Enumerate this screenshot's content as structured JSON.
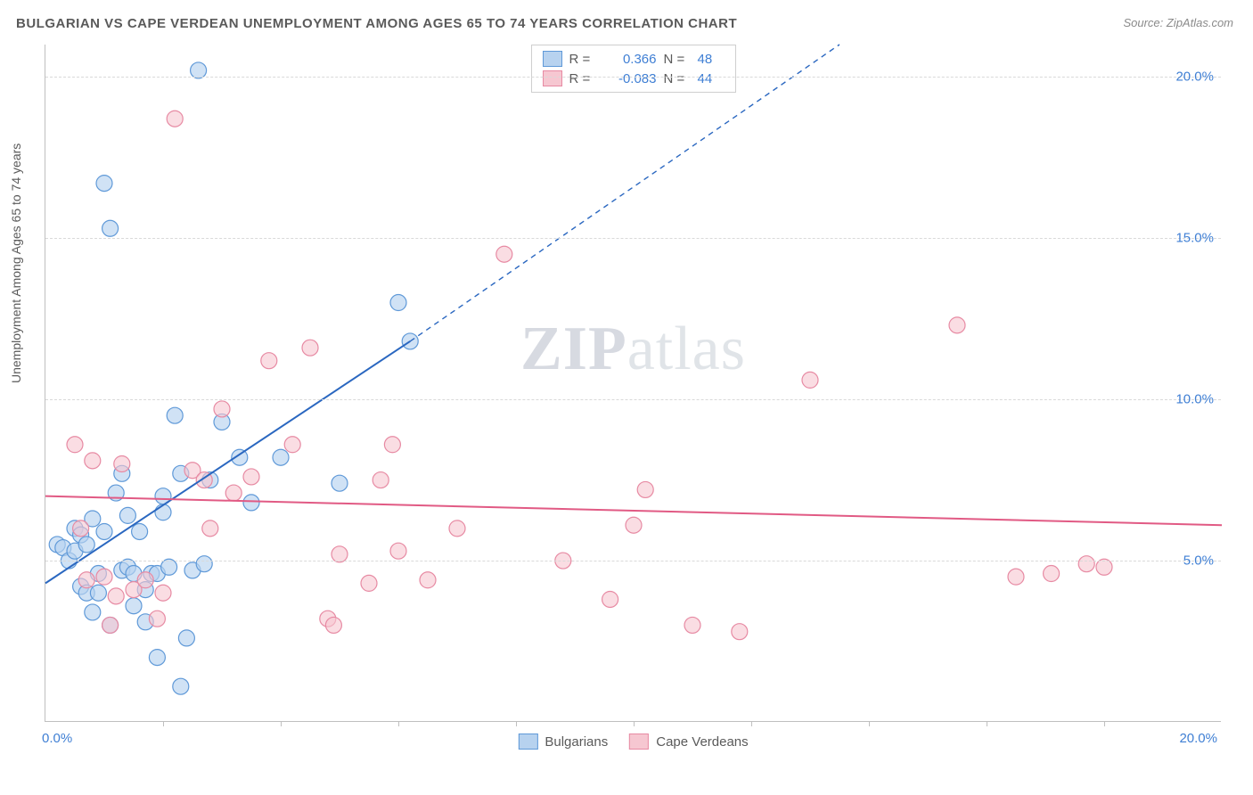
{
  "title": "BULGARIAN VS CAPE VERDEAN UNEMPLOYMENT AMONG AGES 65 TO 74 YEARS CORRELATION CHART",
  "source": "Source: ZipAtlas.com",
  "y_axis_label": "Unemployment Among Ages 65 to 74 years",
  "watermark_a": "ZIP",
  "watermark_b": "atlas",
  "chart": {
    "type": "scatter",
    "xlim": [
      0,
      20
    ],
    "ylim": [
      0,
      21
    ],
    "x_tick_labels": [
      {
        "v": 0,
        "label": "0.0%"
      },
      {
        "v": 20,
        "label": "20.0%"
      }
    ],
    "x_tick_minor": [
      2,
      4,
      6,
      8,
      10,
      12,
      14,
      16,
      18
    ],
    "y_ticks": [
      {
        "v": 5,
        "label": "5.0%"
      },
      {
        "v": 10,
        "label": "10.0%"
      },
      {
        "v": 15,
        "label": "15.0%"
      },
      {
        "v": 20,
        "label": "20.0%"
      }
    ],
    "marker_radius": 9,
    "marker_stroke_width": 1.2,
    "line_width": 2,
    "dash_pattern": "6,5",
    "grid_color": "#d9d9d9",
    "background_color": "#ffffff",
    "series": [
      {
        "name": "Bulgarians",
        "fill": "#b7d2ef",
        "stroke": "#5f99d8",
        "fill_opacity": 0.65,
        "line_color": "#2a67c0",
        "r_value": "0.366",
        "n_value": "48",
        "regression": {
          "x1": 0,
          "y1": 4.3,
          "x2": 6.2,
          "y2": 11.8,
          "dash_to_x": 13.5,
          "dash_to_y": 21
        },
        "points": [
          [
            0.2,
            5.5
          ],
          [
            0.3,
            5.4
          ],
          [
            0.4,
            5.0
          ],
          [
            0.5,
            5.3
          ],
          [
            0.5,
            6.0
          ],
          [
            0.6,
            5.8
          ],
          [
            0.6,
            4.2
          ],
          [
            0.7,
            5.5
          ],
          [
            0.7,
            4.0
          ],
          [
            0.8,
            6.3
          ],
          [
            0.8,
            3.4
          ],
          [
            0.9,
            4.6
          ],
          [
            0.9,
            4.0
          ],
          [
            1.0,
            5.9
          ],
          [
            1.0,
            16.7
          ],
          [
            1.1,
            15.3
          ],
          [
            1.1,
            3.0
          ],
          [
            1.2,
            7.1
          ],
          [
            1.3,
            7.7
          ],
          [
            1.3,
            4.7
          ],
          [
            1.4,
            6.4
          ],
          [
            1.4,
            4.8
          ],
          [
            1.5,
            3.6
          ],
          [
            1.5,
            4.6
          ],
          [
            1.6,
            5.9
          ],
          [
            1.7,
            4.1
          ],
          [
            1.7,
            3.1
          ],
          [
            1.8,
            4.6
          ],
          [
            1.9,
            4.6
          ],
          [
            1.9,
            2.0
          ],
          [
            2.0,
            6.5
          ],
          [
            2.0,
            7.0
          ],
          [
            2.1,
            4.8
          ],
          [
            2.2,
            9.5
          ],
          [
            2.3,
            7.7
          ],
          [
            2.3,
            1.1
          ],
          [
            2.4,
            2.6
          ],
          [
            2.5,
            4.7
          ],
          [
            2.6,
            20.2
          ],
          [
            2.7,
            4.9
          ],
          [
            2.8,
            7.5
          ],
          [
            3.0,
            9.3
          ],
          [
            3.3,
            8.2
          ],
          [
            3.5,
            6.8
          ],
          [
            4.0,
            8.2
          ],
          [
            5.0,
            7.4
          ],
          [
            6.0,
            13.0
          ],
          [
            6.2,
            11.8
          ]
        ]
      },
      {
        "name": "Cape Verdeans",
        "fill": "#f6c7d1",
        "stroke": "#e78aa3",
        "fill_opacity": 0.6,
        "line_color": "#e15a84",
        "r_value": "-0.083",
        "n_value": "44",
        "regression": {
          "x1": 0,
          "y1": 7.0,
          "x2": 20,
          "y2": 6.1
        },
        "points": [
          [
            0.5,
            8.6
          ],
          [
            0.7,
            4.4
          ],
          [
            0.8,
            8.1
          ],
          [
            1.0,
            4.5
          ],
          [
            1.1,
            3.0
          ],
          [
            1.3,
            8.0
          ],
          [
            1.5,
            4.1
          ],
          [
            1.7,
            4.4
          ],
          [
            1.9,
            3.2
          ],
          [
            2.0,
            4.0
          ],
          [
            2.2,
            18.7
          ],
          [
            2.5,
            7.8
          ],
          [
            2.7,
            7.5
          ],
          [
            2.8,
            6.0
          ],
          [
            3.0,
            9.7
          ],
          [
            3.2,
            7.1
          ],
          [
            3.5,
            7.6
          ],
          [
            3.8,
            11.2
          ],
          [
            4.2,
            8.6
          ],
          [
            4.5,
            11.6
          ],
          [
            4.8,
            3.2
          ],
          [
            4.9,
            3.0
          ],
          [
            5.0,
            5.2
          ],
          [
            5.5,
            4.3
          ],
          [
            5.7,
            7.5
          ],
          [
            5.9,
            8.6
          ],
          [
            6.0,
            5.3
          ],
          [
            6.5,
            4.4
          ],
          [
            7.0,
            6.0
          ],
          [
            7.8,
            14.5
          ],
          [
            8.8,
            5.0
          ],
          [
            9.6,
            3.8
          ],
          [
            10.0,
            6.1
          ],
          [
            10.2,
            7.2
          ],
          [
            11.0,
            3.0
          ],
          [
            11.8,
            2.8
          ],
          [
            13.0,
            10.6
          ],
          [
            15.5,
            12.3
          ],
          [
            16.5,
            4.5
          ],
          [
            17.1,
            4.6
          ],
          [
            17.7,
            4.9
          ],
          [
            18.0,
            4.8
          ],
          [
            0.6,
            6.0
          ],
          [
            1.2,
            3.9
          ]
        ]
      }
    ]
  },
  "colors": {
    "title": "#5a5a5a",
    "axis": "#bfbfbf",
    "tick_text": "#3f7fd4"
  }
}
